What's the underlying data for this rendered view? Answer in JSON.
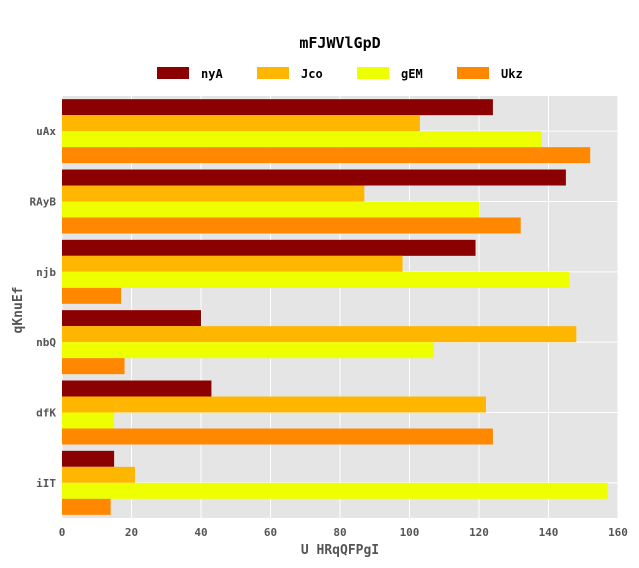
{
  "chart_data": {
    "type": "bar",
    "orientation": "horizontal",
    "title": "mFJWVlGpD",
    "xlabel": "U HRqQFPgI",
    "ylabel": "qKnuEf",
    "categories": [
      "uAx",
      "RAyB",
      "njb",
      "nbQ",
      "dfK",
      "iIT"
    ],
    "series": [
      {
        "name": "nyA",
        "color": "#8b0000",
        "values": [
          124,
          145,
          119,
          40,
          43,
          15
        ]
      },
      {
        "name": "Jco",
        "color": "#ffb600",
        "values": [
          103,
          87,
          98,
          148,
          122,
          21
        ]
      },
      {
        "name": "gEM",
        "color": "#eeff00",
        "values": [
          138,
          120,
          146,
          107,
          15,
          157
        ]
      },
      {
        "name": "Ukz",
        "color": "#ff8800",
        "values": [
          152,
          132,
          17,
          18,
          124,
          14
        ]
      }
    ],
    "xlim": [
      0,
      160
    ],
    "xticks": [
      0,
      20,
      40,
      60,
      80,
      100,
      120,
      140,
      160
    ],
    "grid": true,
    "legend_position": "top",
    "background": "#e5e5e5"
  }
}
